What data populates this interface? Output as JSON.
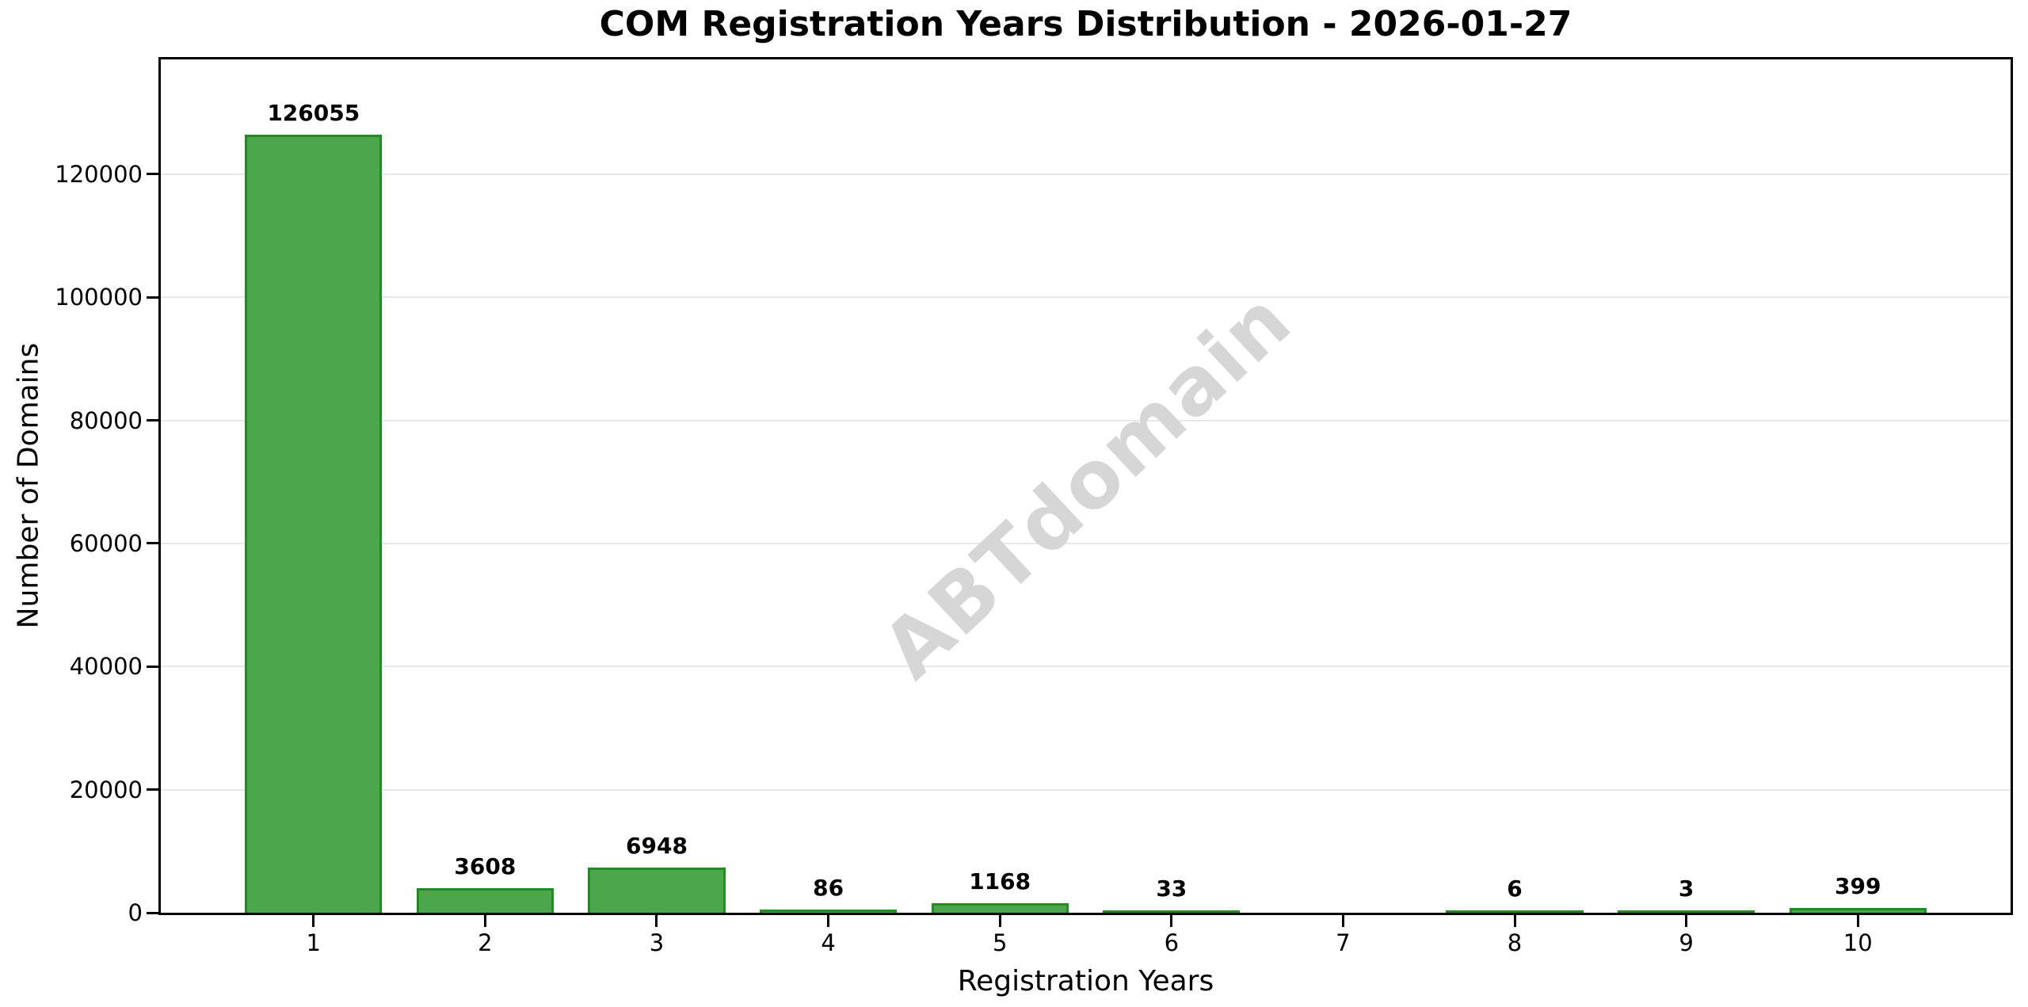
{
  "chart_data": {
    "type": "bar",
    "title": "COM Registration Years Distribution - 2026-01-27",
    "xlabel": "Registration Years",
    "ylabel": "Number of Domains",
    "categories": [
      "1",
      "2",
      "3",
      "4",
      "5",
      "6",
      "7",
      "8",
      "9",
      "10"
    ],
    "values": [
      126055,
      3608,
      6948,
      86,
      1168,
      33,
      0,
      6,
      3,
      399
    ],
    "bar_labels": [
      "126055",
      "3608",
      "6948",
      "86",
      "1168",
      "33",
      "",
      "6",
      "3",
      "399"
    ],
    "yticks": [
      0,
      20000,
      40000,
      60000,
      80000,
      100000,
      120000
    ],
    "ylim": [
      0,
      138660
    ],
    "xlim": [
      0.11,
      10.89
    ],
    "grid": "horizontal-only",
    "legend": "none",
    "watermark": "ABTdomain",
    "colors": {
      "bar_fill": "#4CA64C",
      "bar_edge": "#228B22",
      "grid": "#e8e8e8",
      "spine": "#000000",
      "watermark": "#d6d6d6",
      "background": "#ffffff",
      "text": "#000000"
    }
  }
}
